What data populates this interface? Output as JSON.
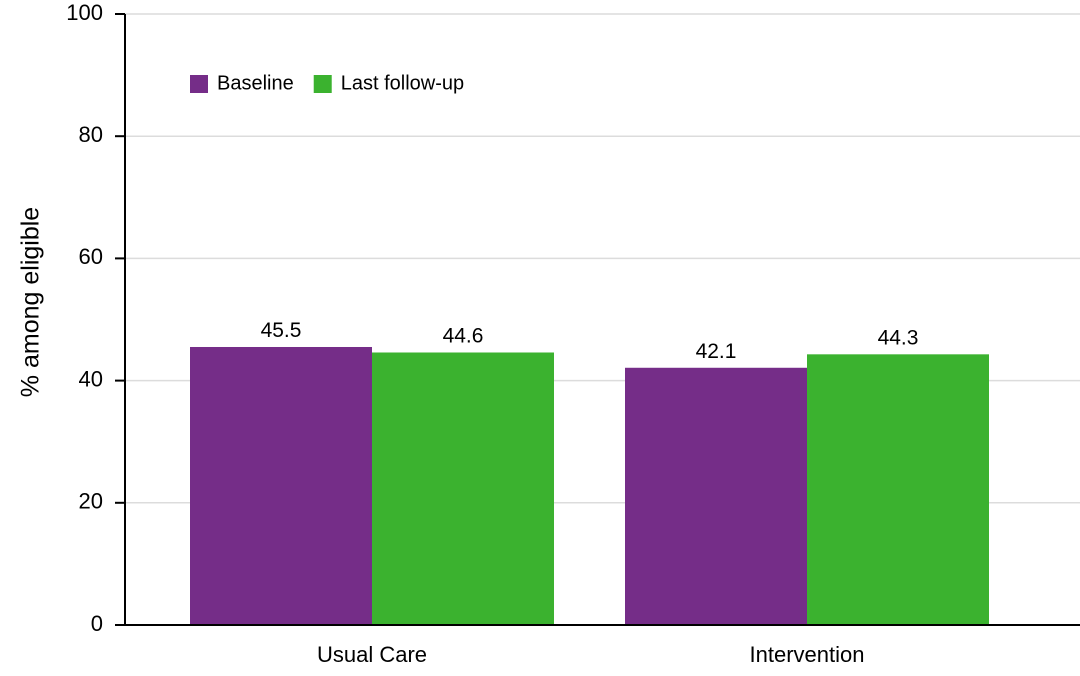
{
  "chart_data": {
    "type": "bar",
    "title": "",
    "xlabel": "",
    "ylabel": "% among eligible",
    "ylim": [
      0,
      100
    ],
    "yticks": [
      0,
      20,
      40,
      60,
      80,
      100
    ],
    "grid": true,
    "legend_position": "top-left",
    "categories": [
      "Usual Care",
      "Intervention"
    ],
    "series": [
      {
        "name": "Baseline",
        "color": "#752d88",
        "values": [
          45.5,
          42.1
        ]
      },
      {
        "name": "Last follow-up",
        "color": "#3bb22f",
        "values": [
          44.6,
          44.3
        ]
      }
    ]
  }
}
